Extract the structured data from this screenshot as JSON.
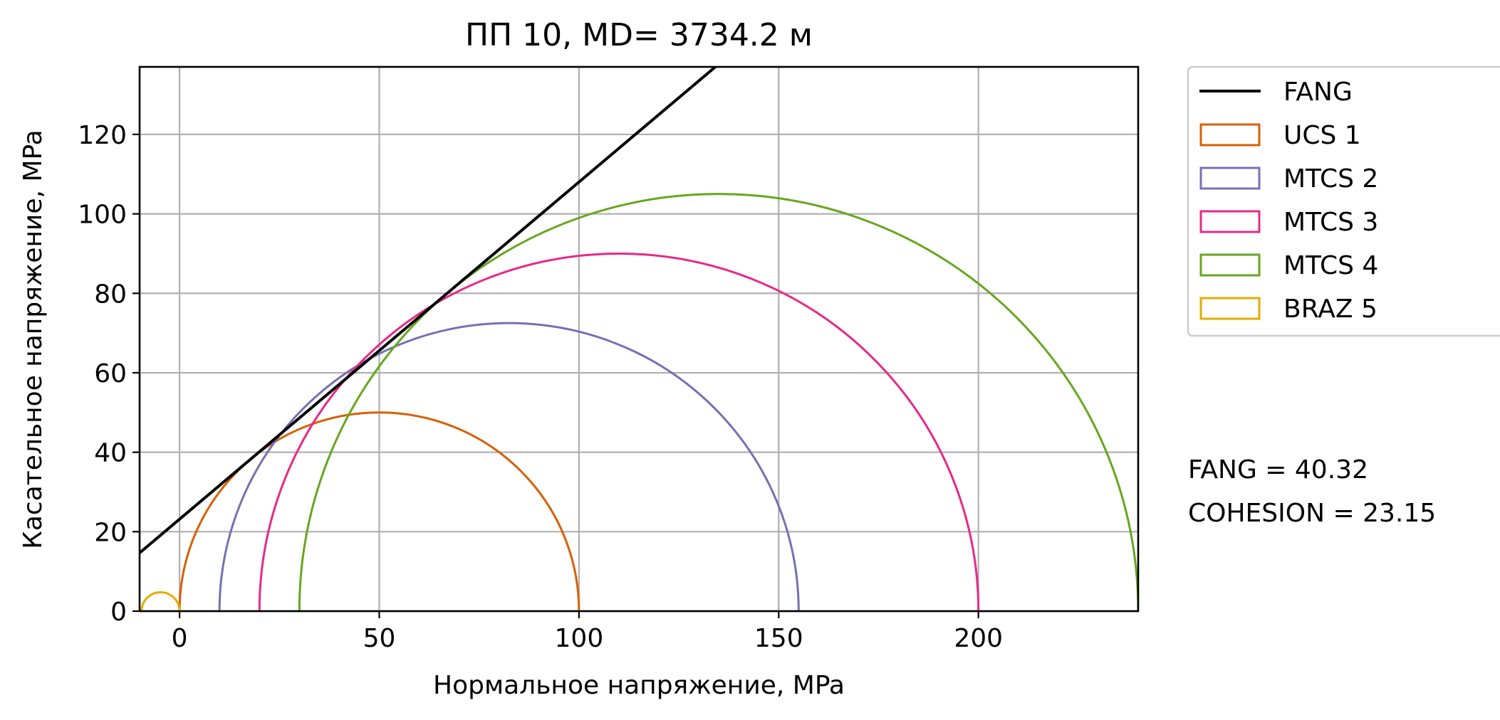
{
  "chart_data": {
    "type": "line",
    "title": "ПП 10, MD= 3734.2 м",
    "xlabel": "Нормальное напряжение, MPa",
    "ylabel": "Касательное напряжение, MPa",
    "xlim": [
      -10,
      240
    ],
    "ylim": [
      0,
      137
    ],
    "xticks": [
      0,
      50,
      100,
      150,
      200
    ],
    "xtick_labels": [
      "0",
      "50",
      "100",
      "150",
      "200"
    ],
    "yticks": [
      0,
      20,
      40,
      60,
      80,
      100,
      120
    ],
    "ytick_labels": [
      "0",
      "20",
      "40",
      "60",
      "80",
      "100",
      "120"
    ],
    "grid": true,
    "legend_position": "outside-top-right",
    "fang_line": {
      "name": "FANG",
      "color": "#000000",
      "intercept": 23.15,
      "angle_deg": 40.32
    },
    "circles": [
      {
        "name": "UCS 1",
        "color": "#d95f02",
        "sigma3": 0,
        "sigma1": 100
      },
      {
        "name": "MTCS 2",
        "color": "#7570b3",
        "sigma3": 10,
        "sigma1": 155
      },
      {
        "name": "MTCS 3",
        "color": "#e7298a",
        "sigma3": 20,
        "sigma1": 200
      },
      {
        "name": "MTCS 4",
        "color": "#66a61e",
        "sigma3": 30,
        "sigma1": 240
      },
      {
        "name": "BRAZ 5",
        "color": "#e6ab02",
        "sigma3": -9.5,
        "sigma1": 0
      }
    ],
    "annotations": [
      "FANG  = 40.32",
      "COHESION  = 23.15"
    ]
  }
}
